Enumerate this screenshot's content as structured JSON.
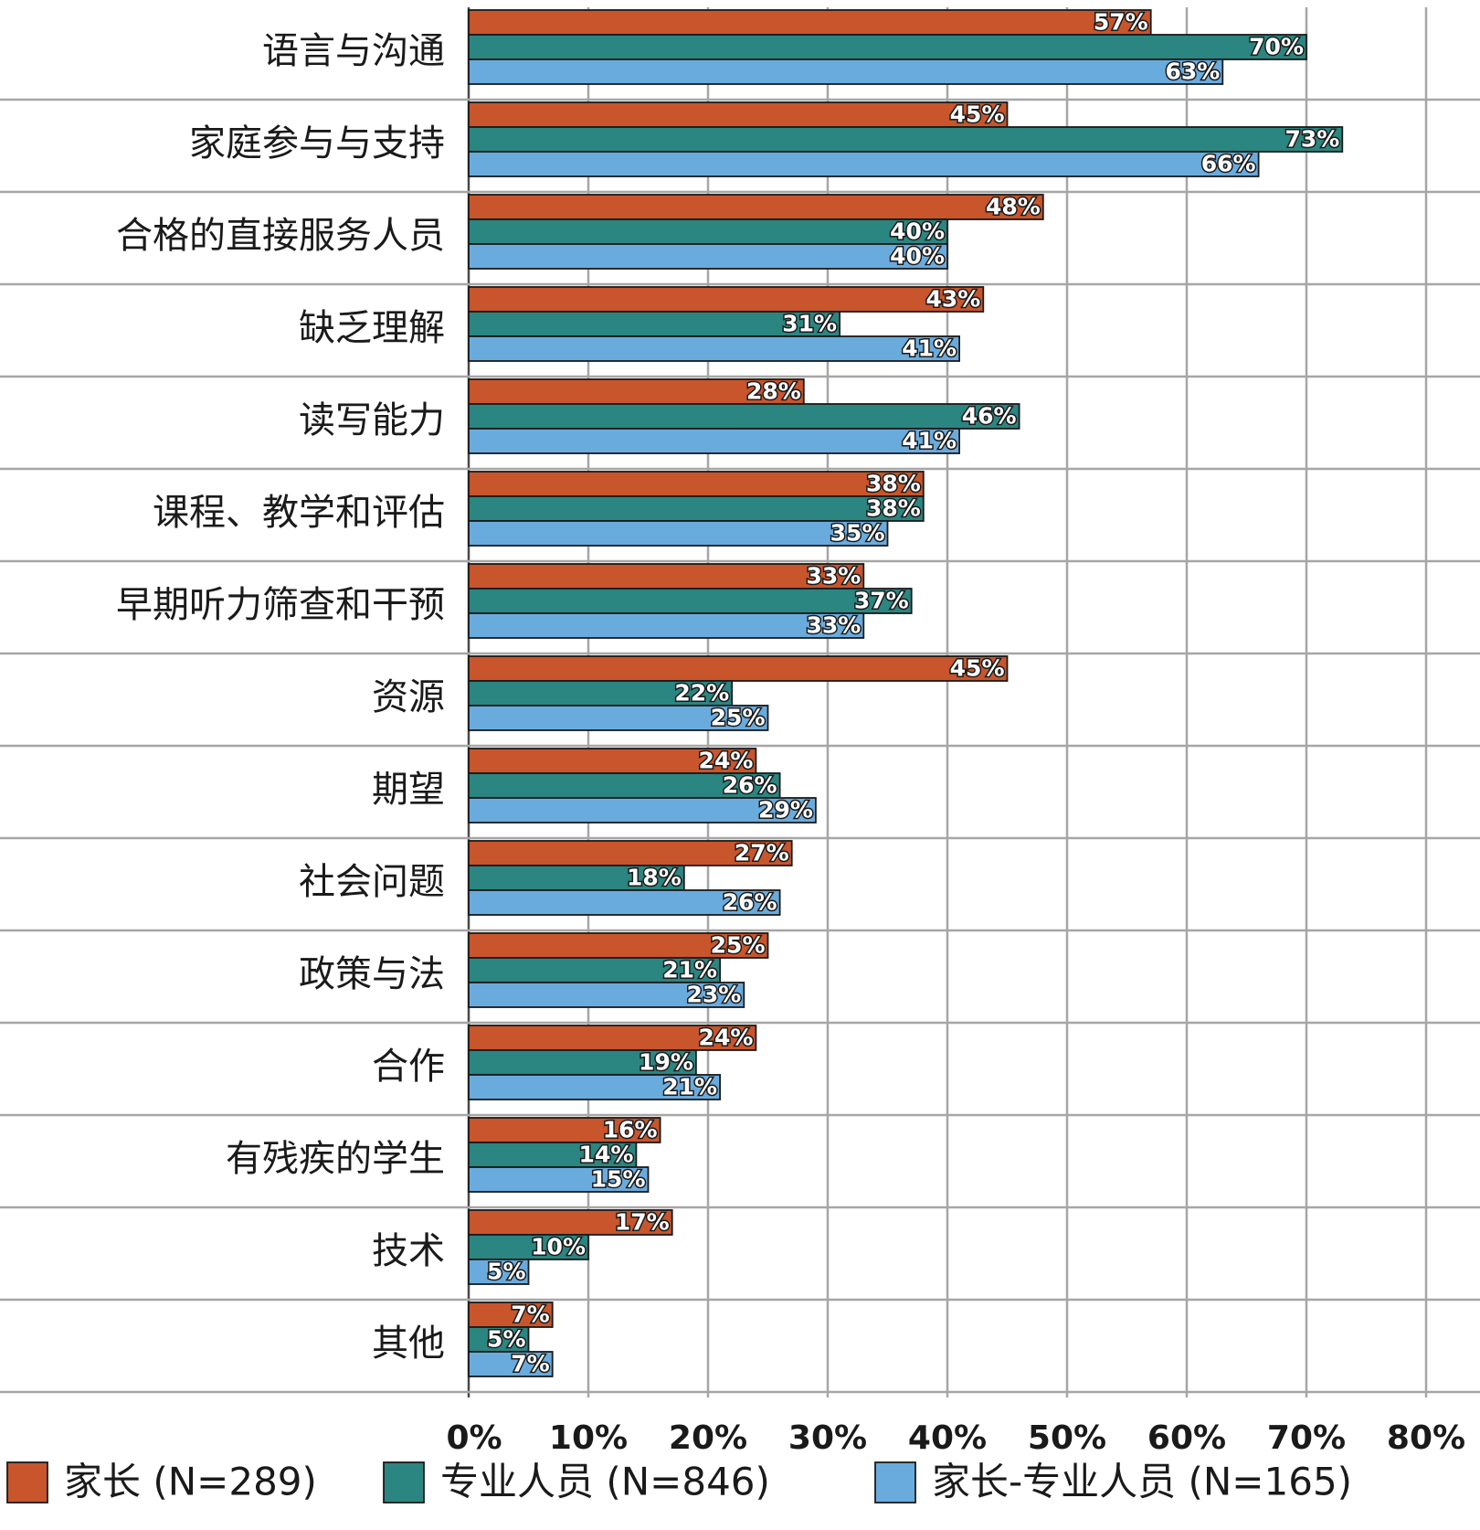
{
  "chart_data": {
    "type": "bar",
    "orientation": "horizontal",
    "categories": [
      "语言与沟通",
      "家庭参与与支持",
      "合格的直接服务人员",
      "缺乏理解",
      "读写能力",
      "课程、教学和评估",
      "早期听力筛查和干预",
      "资源",
      "期望",
      "社会问题",
      "政策与法",
      "合作",
      "有残疾的学生",
      "技术",
      "其他"
    ],
    "series": [
      {
        "name": "家长 (N=289)",
        "color": "#c8552b",
        "values": [
          57,
          45,
          48,
          43,
          28,
          38,
          33,
          45,
          24,
          27,
          25,
          24,
          16,
          17,
          7
        ]
      },
      {
        "name": "专业人员 (N=846)",
        "color": "#2b8580",
        "values": [
          70,
          73,
          40,
          31,
          46,
          38,
          37,
          22,
          26,
          18,
          21,
          19,
          14,
          10,
          5
        ]
      },
      {
        "name": "家长-专业人员 (N=165)",
        "color": "#6aabde",
        "values": [
          63,
          66,
          40,
          41,
          41,
          35,
          33,
          25,
          29,
          26,
          23,
          21,
          15,
          5,
          7
        ]
      }
    ],
    "xticks": [
      "0%",
      "10%",
      "20%",
      "30%",
      "40%",
      "50%",
      "60%",
      "70%",
      "80%"
    ],
    "xlim": [
      0,
      80
    ],
    "value_suffix": "%",
    "grid": true,
    "legend_position": "bottom"
  }
}
